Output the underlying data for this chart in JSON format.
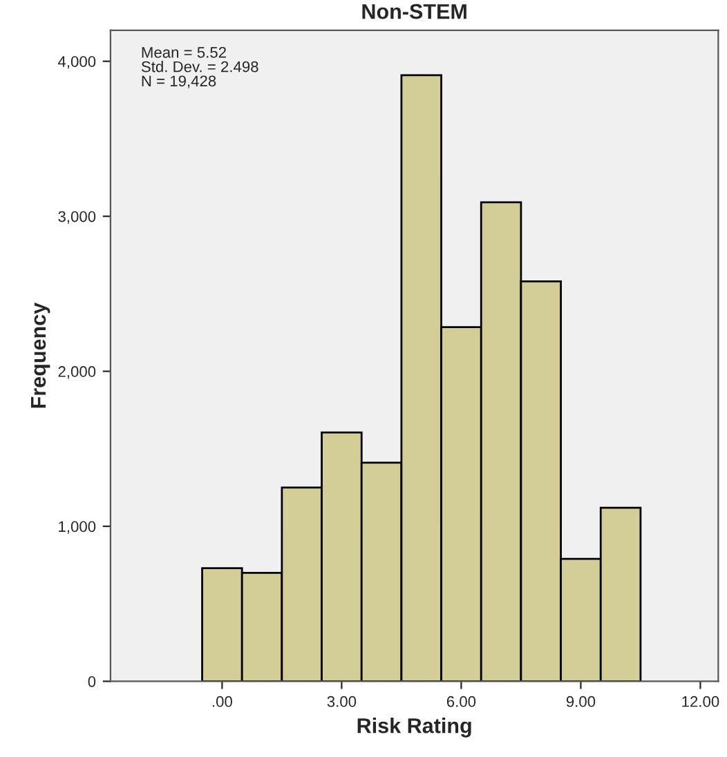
{
  "chart_data": {
    "type": "histogram",
    "title": "Non-STEM",
    "xlabel": "Risk Rating",
    "ylabel": "Frequency",
    "bins": [
      -0.5,
      0.5,
      1.5,
      2.5,
      3.5,
      4.5,
      5.5,
      6.5,
      7.5,
      8.5,
      9.5,
      10.5
    ],
    "values": [
      730,
      700,
      1250,
      1605,
      1410,
      3910,
      2285,
      3090,
      2580,
      790,
      1120
    ],
    "color": "#d3ce97",
    "xlim": [
      -2.8,
      12.45
    ],
    "xticks": [
      {
        "value": 0,
        "label": ".00"
      },
      {
        "value": 3,
        "label": "3.00"
      },
      {
        "value": 6,
        "label": "6.00"
      },
      {
        "value": 9,
        "label": "9.00"
      },
      {
        "value": 12,
        "label": "12.00"
      }
    ],
    "ylim": [
      0,
      4200
    ],
    "yticks": [
      {
        "value": 0,
        "label": "0"
      },
      {
        "value": 1000,
        "label": "1,000"
      },
      {
        "value": 2000,
        "label": "2,000"
      },
      {
        "value": 3000,
        "label": "3,000"
      },
      {
        "value": 4000,
        "label": "4,000"
      }
    ],
    "annotations": [
      "Mean = 5.52\nStd. Dev. = 2.498\nN = 19,428"
    ],
    "grid": false
  }
}
